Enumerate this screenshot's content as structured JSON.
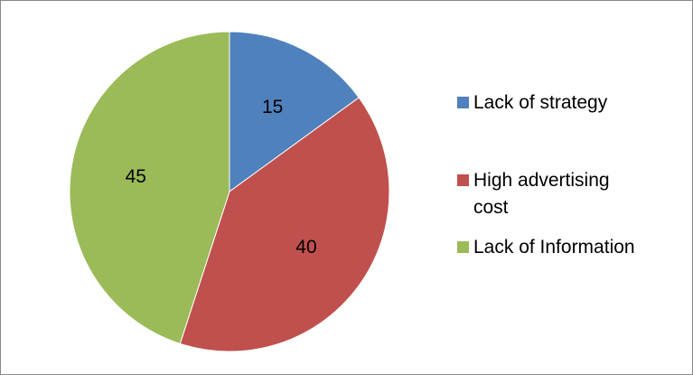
{
  "chart_data": {
    "type": "pie",
    "categories": [
      "Lack of strategy",
      "High advertising cost",
      "Lack of Information"
    ],
    "values": [
      15,
      40,
      45
    ],
    "colors": [
      "#4F81BD",
      "#C0504D",
      "#9BBB59"
    ],
    "data_labels": [
      "15",
      "40",
      "45"
    ],
    "legend": {
      "position": "right",
      "items": [
        {
          "label": "Lack of strategy",
          "color": "#4F81BD"
        },
        {
          "label": "High advertising cost",
          "color": "#C0504D"
        },
        {
          "label": "Lack of Information",
          "color": "#9BBB59"
        }
      ]
    },
    "title": ""
  }
}
